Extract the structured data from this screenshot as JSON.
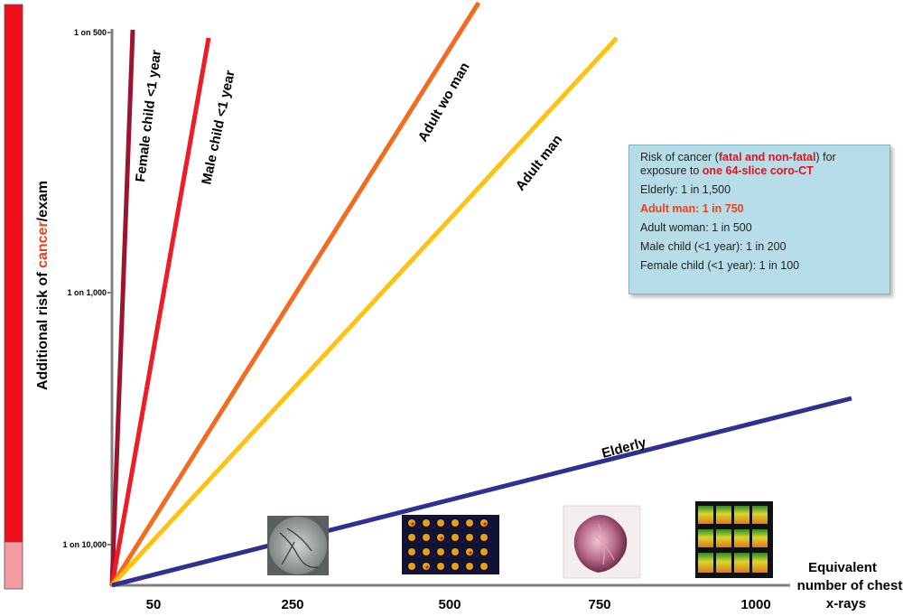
{
  "chart_data": {
    "type": "line",
    "ylabel": [
      "Additional risk of ",
      "cancer",
      "/exam"
    ],
    "xlabel": [
      "Equivalent",
      "number of chest",
      "x-rays"
    ],
    "y_ticks": [
      "1 on 500",
      "1 on 1,000",
      "1 on 10,000"
    ],
    "x_ticks": [
      "50",
      "250",
      "500",
      "750",
      "1000"
    ],
    "series": [
      {
        "name": "Female child <1 year",
        "color": "#9b1530"
      },
      {
        "name": "Male child <1 year",
        "color": "#ee1c25"
      },
      {
        "name": "Adult  wo man",
        "color": "#f26b1f"
      },
      {
        "name": "Adult   man",
        "color": "#ffc20e"
      },
      {
        "name": "Elderly",
        "color": "#2e3192"
      }
    ],
    "risk_bar_colors": [
      "#ee0f1c",
      "#f29ba3"
    ]
  },
  "infobox": {
    "intro1": "Risk of cancer (",
    "intro_red1": "fatal and non-fatal",
    "intro2": ") for exposure to ",
    "intro_red2": "one  64-slice coro-CT",
    "lines": [
      "Elderly: 1 in 1,500",
      "Adult man: 1 in 750",
      "Adult woman: 1 in 500",
      "Male child (<1 year): 1 in 200",
      "Female child (<1 year): 1 in 100"
    ]
  }
}
